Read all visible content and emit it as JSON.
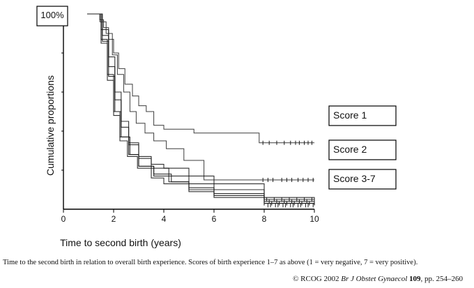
{
  "chart_data": {
    "type": "line",
    "title": "",
    "xlabel": "Time to second birth (years)",
    "ylabel": "Cumulative proportions",
    "xlim": [
      0,
      10
    ],
    "ylim": [
      0,
      1
    ],
    "xticks": [
      "0",
      "2",
      "4",
      "6",
      "8",
      "10"
    ],
    "top_label": "100%",
    "grid": false,
    "series": [
      {
        "name": "Score 1",
        "x": [
          0.95,
          1.25,
          1.45,
          1.6,
          1.8,
          2.0,
          2.2,
          2.45,
          2.75,
          3.0,
          3.3,
          3.6,
          4.0,
          5.2,
          7.8,
          10.0
        ],
        "y": [
          1.0,
          1.0,
          0.97,
          0.93,
          0.87,
          0.8,
          0.72,
          0.64,
          0.58,
          0.53,
          0.5,
          0.43,
          0.41,
          0.39,
          0.34,
          0.34
        ]
      },
      {
        "name": "Score 2",
        "x": [
          0.95,
          1.25,
          1.45,
          1.7,
          1.95,
          2.15,
          2.4,
          2.65,
          2.9,
          3.25,
          3.6,
          4.1,
          4.8,
          5.6,
          7.8,
          10.0
        ],
        "y": [
          1.0,
          1.0,
          0.96,
          0.9,
          0.79,
          0.69,
          0.6,
          0.5,
          0.44,
          0.39,
          0.35,
          0.31,
          0.25,
          0.15,
          0.15,
          0.15
        ]
      },
      {
        "name": "Score 3",
        "x": [
          0.95,
          1.25,
          1.5,
          1.8,
          2.05,
          2.3,
          2.6,
          3.0,
          3.5,
          4.0,
          5.0,
          6.0,
          8.0,
          10.0
        ],
        "y": [
          1.0,
          1.0,
          0.92,
          0.78,
          0.6,
          0.45,
          0.34,
          0.27,
          0.23,
          0.21,
          0.17,
          0.13,
          0.06,
          0.05
        ]
      },
      {
        "name": "Score 4",
        "x": [
          0.95,
          1.3,
          1.55,
          1.8,
          2.05,
          2.3,
          2.6,
          3.0,
          3.5,
          4.2,
          5.0,
          6.0,
          8.0,
          10.0
        ],
        "y": [
          1.0,
          1.0,
          0.89,
          0.73,
          0.56,
          0.42,
          0.33,
          0.26,
          0.21,
          0.17,
          0.13,
          0.1,
          0.05,
          0.04
        ]
      },
      {
        "name": "Score 5",
        "x": [
          0.95,
          1.3,
          1.55,
          1.8,
          2.05,
          2.3,
          2.65,
          3.0,
          3.6,
          4.3,
          5.0,
          6.0,
          8.0,
          10.0
        ],
        "y": [
          1.0,
          1.0,
          0.86,
          0.68,
          0.5,
          0.37,
          0.28,
          0.22,
          0.18,
          0.14,
          0.11,
          0.08,
          0.04,
          0.03
        ]
      },
      {
        "name": "Score 6",
        "x": [
          0.95,
          1.3,
          1.5,
          1.75,
          2.0,
          2.25,
          2.6,
          3.0,
          3.6,
          4.2,
          5.0,
          6.0,
          8.0,
          10.0
        ],
        "y": [
          1.0,
          1.0,
          0.87,
          0.69,
          0.5,
          0.37,
          0.28,
          0.22,
          0.17,
          0.14,
          0.1,
          0.07,
          0.03,
          0.02
        ]
      },
      {
        "name": "Score 7",
        "x": [
          0.95,
          1.25,
          1.5,
          1.75,
          2.0,
          2.25,
          2.55,
          2.95,
          3.5,
          4.0,
          5.0,
          6.0,
          8.0,
          10.0
        ],
        "y": [
          1.0,
          1.0,
          0.85,
          0.66,
          0.48,
          0.35,
          0.27,
          0.21,
          0.16,
          0.13,
          0.09,
          0.06,
          0.03,
          0.02
        ]
      }
    ],
    "censor_marks": [
      {
        "series": "Score 1",
        "y": 0.34,
        "x": [
          7.95,
          8.2,
          8.5,
          8.8,
          9.05,
          9.25,
          9.4,
          9.6,
          9.75,
          9.9
        ]
      },
      {
        "series": "Score 2",
        "y": 0.15,
        "x": [
          7.95,
          8.15,
          8.35,
          8.7,
          8.9,
          9.1,
          9.35,
          9.55,
          9.75,
          9.95
        ]
      },
      {
        "series": "Score 3",
        "y": 0.05,
        "x": [
          8.1,
          8.4,
          8.7,
          9.0,
          9.3,
          9.6,
          9.9
        ]
      },
      {
        "series": "Score 4",
        "y": 0.04,
        "x": [
          8.2,
          8.5,
          8.8,
          9.1,
          9.4,
          9.7
        ]
      },
      {
        "series": "Score 5",
        "y": 0.03,
        "x": [
          8.0,
          8.3,
          8.6,
          8.9,
          9.2,
          9.5,
          9.8
        ]
      },
      {
        "series": "Score 6",
        "y": 0.02,
        "x": [
          8.15,
          8.45,
          8.75,
          9.05,
          9.35,
          9.65,
          9.95
        ]
      },
      {
        "series": "Score 7",
        "y": 0.02,
        "x": [
          8.25,
          8.55,
          8.85,
          9.15,
          9.45,
          9.75
        ]
      }
    ],
    "annotations": [
      {
        "text": "Score 1",
        "points_to": 0.34
      },
      {
        "text": "Score 2",
        "points_to": 0.15
      },
      {
        "text": "Score 3-7",
        "points_to": 0.03
      }
    ],
    "colors": {
      "lines": "#1a1a1a",
      "axis": "#000000"
    }
  },
  "caption": "Time to the second birth in relation to overall birth experience. Scores of birth experience 1–7 as above (1 = very negative, 7 = very positive).",
  "credit": {
    "prefix": "© RCOG 2002 ",
    "journal": "Br J Obstet Gynaecol",
    "volume": "109",
    "pages": ", pp. 254–260"
  }
}
